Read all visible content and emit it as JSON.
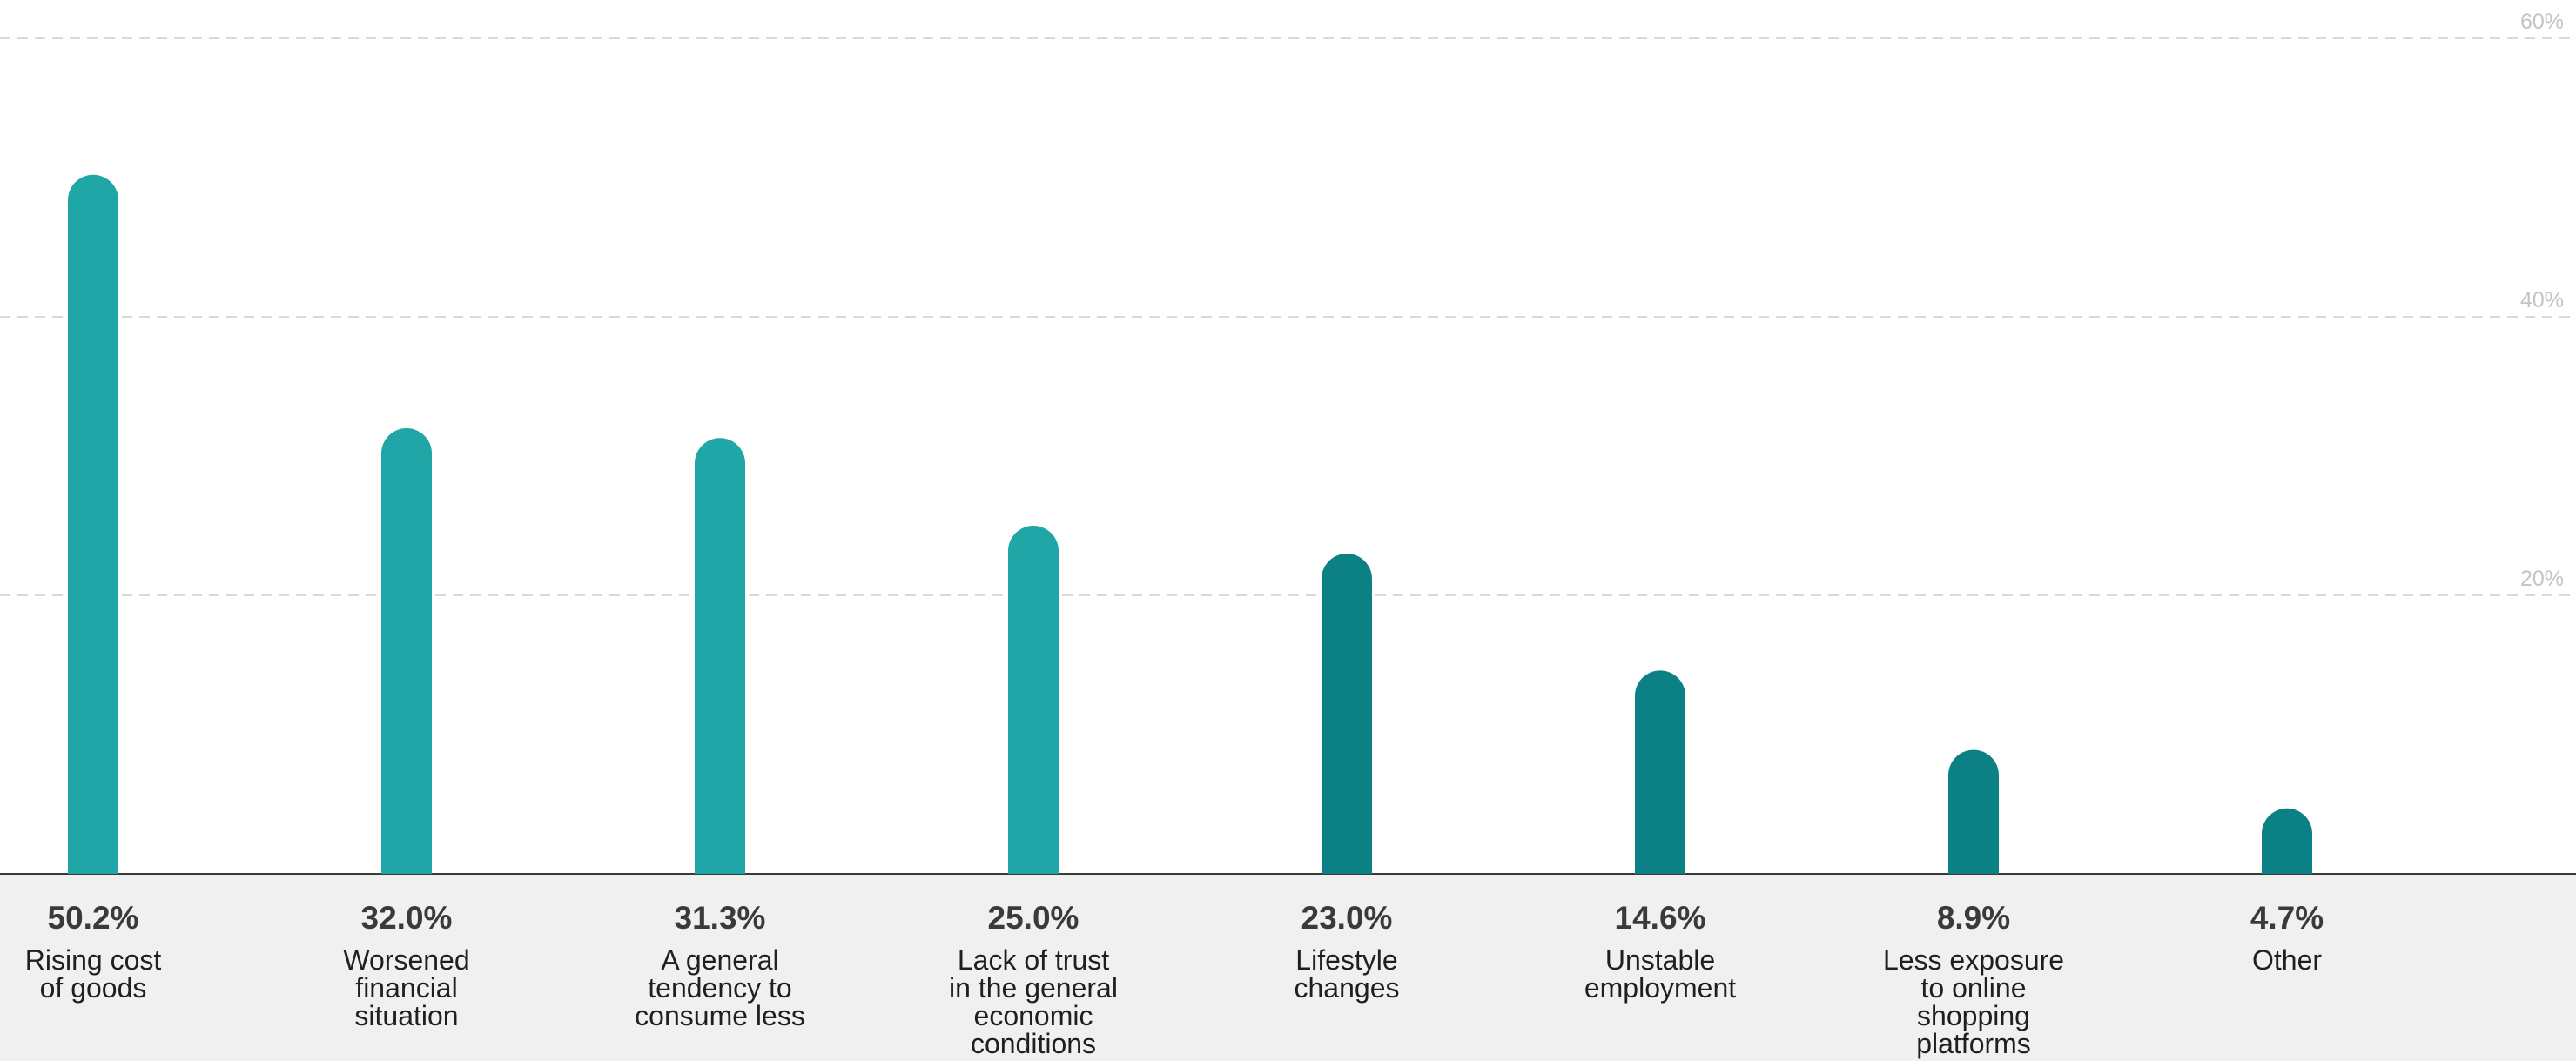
{
  "chart_data": {
    "type": "bar",
    "categories": [
      [
        "Rising cost",
        "of goods"
      ],
      [
        "Worsened",
        "financial",
        "situation"
      ],
      [
        "A general",
        "tendency to",
        "consume less"
      ],
      [
        "Lack of trust",
        "in the general",
        "economic",
        "conditions"
      ],
      [
        "Lifestyle",
        "changes"
      ],
      [
        "Unstable",
        "employment"
      ],
      [
        "Less exposure",
        "to online",
        "shopping",
        "platforms"
      ],
      [
        "Other"
      ]
    ],
    "values": [
      50.2,
      32.0,
      31.3,
      25.0,
      23.0,
      14.6,
      8.9,
      4.7
    ],
    "value_labels": [
      "50.2%",
      "32.0%",
      "31.3%",
      "25.0%",
      "23.0%",
      "14.6%",
      "8.9%",
      "4.7%"
    ],
    "ylim": [
      0,
      60
    ],
    "yticks": [
      20,
      40,
      60
    ],
    "ytick_labels": [
      "20%",
      "40%",
      "60%"
    ],
    "grid": true,
    "bar_colors": [
      "#20a6a6",
      "#20a6a6",
      "#20a6a6",
      "#20a6a6",
      "#0b8186",
      "#0b8186",
      "#0b8186",
      "#0b8186"
    ],
    "label_band_color": "#f0f0f0"
  }
}
